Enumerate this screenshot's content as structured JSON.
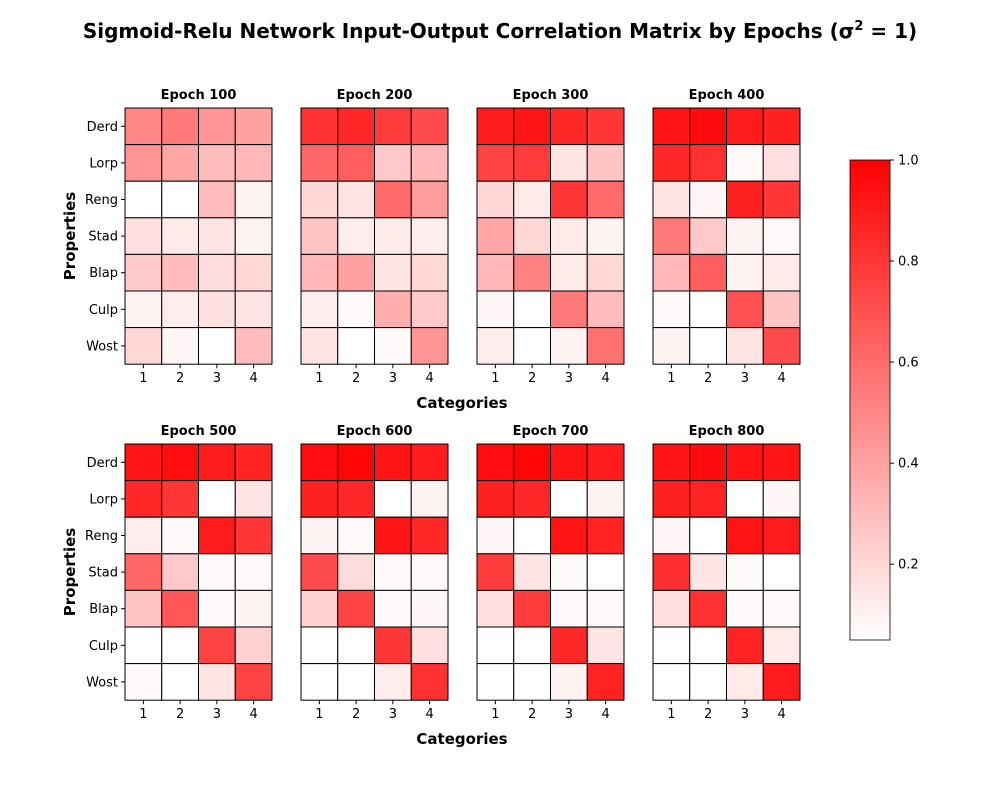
{
  "chart_data": {
    "type": "heatmap",
    "title": "Sigmoid-Relu Network Input-Output Correlation Matrix by Epochs (σ",
    "title_superscript": "2",
    "title_suffix": " = 1)",
    "xlabel": "Categories",
    "ylabel": "Properties",
    "x_ticks": [
      "1",
      "2",
      "3",
      "4"
    ],
    "y_ticks": [
      "Derd",
      "Lorp",
      "Reng",
      "Stad",
      "Blap",
      "Culp",
      "Wost"
    ],
    "colormap": {
      "low": "#ffffff",
      "high": "#ff0000"
    },
    "grid_color": "#000000",
    "colorbar": {
      "range": [
        0.05,
        1.0
      ],
      "ticks": [
        "0.2",
        "0.4",
        "0.6",
        "0.8",
        "1.0"
      ],
      "tick_values": [
        0.2,
        0.4,
        0.6,
        0.8,
        1.0
      ]
    },
    "panels": [
      {
        "title": "Epoch 100",
        "matrix": [
          [
            0.5,
            0.55,
            0.45,
            0.4
          ],
          [
            0.45,
            0.38,
            0.3,
            0.32
          ],
          [
            0.05,
            0.05,
            0.3,
            0.1
          ],
          [
            0.17,
            0.13,
            0.15,
            0.1
          ],
          [
            0.25,
            0.3,
            0.18,
            0.2
          ],
          [
            0.1,
            0.12,
            0.17,
            0.15
          ],
          [
            0.2,
            0.08,
            0.05,
            0.3
          ]
        ]
      },
      {
        "title": "Epoch 200",
        "matrix": [
          [
            0.82,
            0.85,
            0.78,
            0.72
          ],
          [
            0.62,
            0.65,
            0.25,
            0.32
          ],
          [
            0.2,
            0.15,
            0.6,
            0.42
          ],
          [
            0.27,
            0.12,
            0.13,
            0.12
          ],
          [
            0.32,
            0.4,
            0.15,
            0.2
          ],
          [
            0.12,
            0.07,
            0.35,
            0.25
          ],
          [
            0.15,
            0.05,
            0.07,
            0.45
          ]
        ]
      },
      {
        "title": "Epoch 300",
        "matrix": [
          [
            0.9,
            0.92,
            0.85,
            0.8
          ],
          [
            0.75,
            0.78,
            0.15,
            0.27
          ],
          [
            0.2,
            0.13,
            0.8,
            0.6
          ],
          [
            0.38,
            0.2,
            0.13,
            0.1
          ],
          [
            0.32,
            0.52,
            0.13,
            0.2
          ],
          [
            0.08,
            0.05,
            0.55,
            0.3
          ],
          [
            0.12,
            0.05,
            0.1,
            0.58
          ]
        ]
      },
      {
        "title": "Epoch 400",
        "matrix": [
          [
            0.93,
            0.96,
            0.9,
            0.88
          ],
          [
            0.85,
            0.82,
            0.07,
            0.17
          ],
          [
            0.15,
            0.08,
            0.88,
            0.8
          ],
          [
            0.55,
            0.25,
            0.1,
            0.07
          ],
          [
            0.32,
            0.65,
            0.1,
            0.13
          ],
          [
            0.07,
            0.05,
            0.7,
            0.27
          ],
          [
            0.1,
            0.05,
            0.15,
            0.72
          ]
        ]
      },
      {
        "title": "Epoch 500",
        "matrix": [
          [
            0.92,
            0.95,
            0.9,
            0.87
          ],
          [
            0.85,
            0.8,
            0.05,
            0.15
          ],
          [
            0.12,
            0.07,
            0.9,
            0.8
          ],
          [
            0.62,
            0.25,
            0.07,
            0.07
          ],
          [
            0.27,
            0.68,
            0.07,
            0.1
          ],
          [
            0.05,
            0.05,
            0.75,
            0.22
          ],
          [
            0.07,
            0.05,
            0.15,
            0.75
          ]
        ]
      },
      {
        "title": "Epoch 600",
        "matrix": [
          [
            0.95,
            0.98,
            0.93,
            0.9
          ],
          [
            0.88,
            0.85,
            0.05,
            0.1
          ],
          [
            0.1,
            0.07,
            0.92,
            0.85
          ],
          [
            0.72,
            0.18,
            0.07,
            0.07
          ],
          [
            0.22,
            0.75,
            0.07,
            0.08
          ],
          [
            0.05,
            0.05,
            0.8,
            0.17
          ],
          [
            0.05,
            0.05,
            0.12,
            0.82
          ]
        ]
      },
      {
        "title": "Epoch 700",
        "matrix": [
          [
            0.95,
            0.98,
            0.93,
            0.9
          ],
          [
            0.88,
            0.85,
            0.05,
            0.1
          ],
          [
            0.08,
            0.05,
            0.93,
            0.87
          ],
          [
            0.78,
            0.15,
            0.07,
            0.05
          ],
          [
            0.17,
            0.78,
            0.07,
            0.07
          ],
          [
            0.05,
            0.05,
            0.85,
            0.15
          ],
          [
            0.05,
            0.05,
            0.1,
            0.87
          ]
        ]
      },
      {
        "title": "Epoch 800",
        "matrix": [
          [
            0.93,
            0.96,
            0.93,
            0.92
          ],
          [
            0.88,
            0.87,
            0.05,
            0.08
          ],
          [
            0.08,
            0.05,
            0.93,
            0.9
          ],
          [
            0.83,
            0.15,
            0.07,
            0.05
          ],
          [
            0.17,
            0.82,
            0.07,
            0.07
          ],
          [
            0.05,
            0.05,
            0.87,
            0.13
          ],
          [
            0.05,
            0.05,
            0.13,
            0.9
          ]
        ]
      }
    ]
  }
}
